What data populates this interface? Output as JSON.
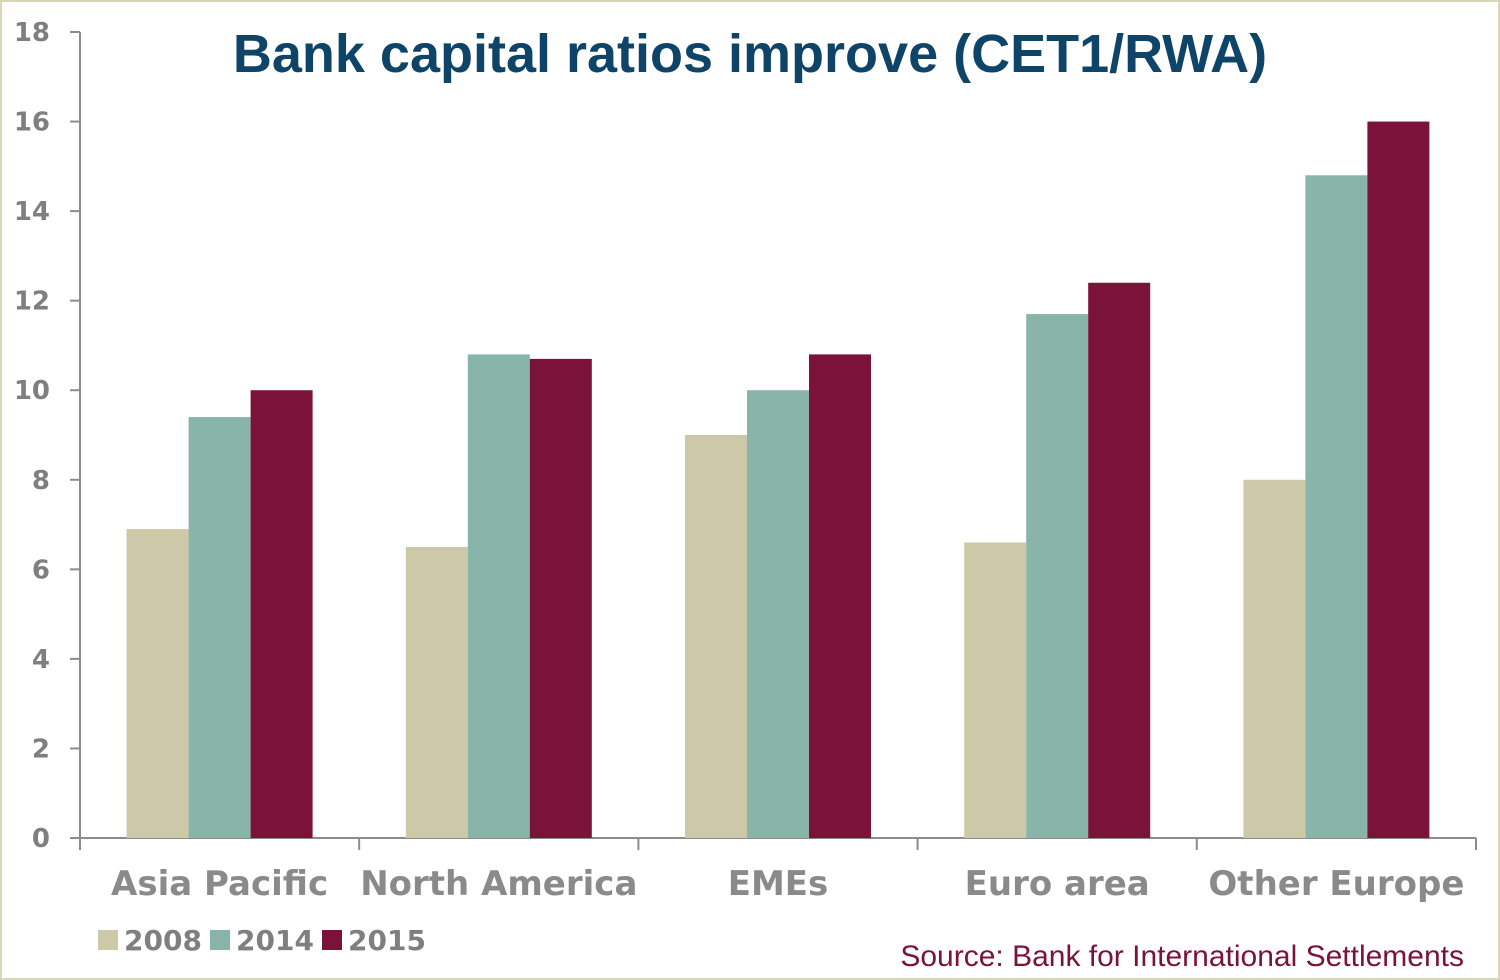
{
  "chart_data": {
    "type": "bar",
    "title": "Bank capital ratios improve (CET1/RWA)",
    "categories": [
      "Asia Pacific",
      "North America",
      "EMEs",
      "Euro area",
      "Other Europe"
    ],
    "series": [
      {
        "name": "2008",
        "color": "#cdc8a8",
        "values": [
          6.9,
          6.5,
          9.0,
          6.6,
          8.0
        ]
      },
      {
        "name": "2014",
        "color": "#88b4aa",
        "values": [
          9.4,
          10.8,
          10.0,
          11.7,
          14.8
        ]
      },
      {
        "name": "2015",
        "color": "#7b1239",
        "values": [
          10.0,
          10.7,
          10.8,
          12.4,
          16.0
        ]
      }
    ],
    "ylim": [
      0,
      18
    ],
    "yticks": [
      0,
      2,
      4,
      6,
      8,
      10,
      12,
      14,
      16,
      18
    ],
    "xlabel": "",
    "ylabel": "",
    "grid": false,
    "legend_position": "bottom-left",
    "source": "Source: Bank for International Settlements"
  }
}
